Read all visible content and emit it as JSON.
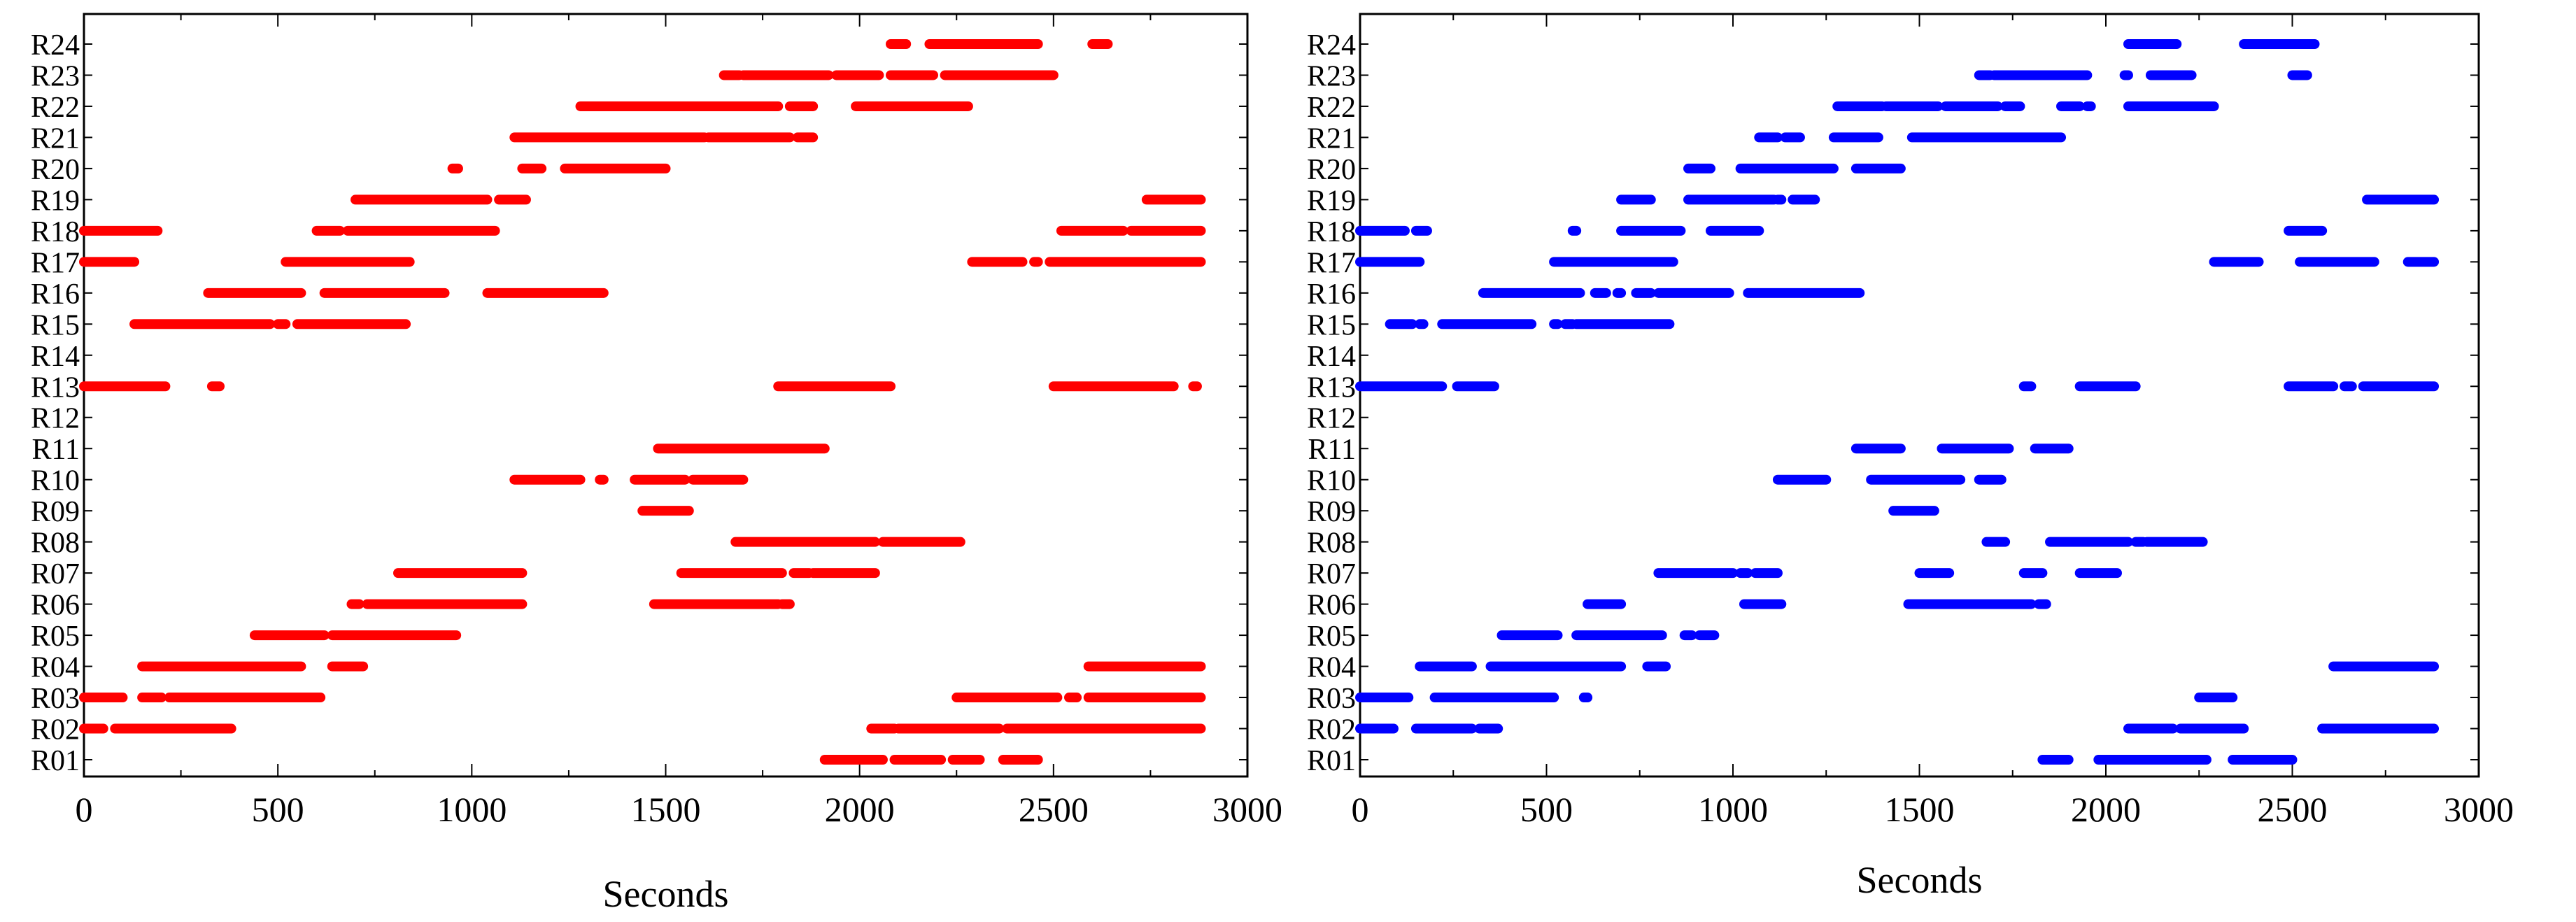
{
  "chart_data": [
    {
      "type": "scatter",
      "xlabel": "Seconds",
      "xlim": [
        0,
        3000
      ],
      "xticks": [
        0,
        500,
        1000,
        1500,
        2000,
        2500,
        3000
      ],
      "xtick_labels": [
        "0",
        "500",
        "1000",
        "1500",
        "2000",
        "2500",
        "3000"
      ],
      "categories": [
        "R01",
        "R02",
        "R03",
        "R04",
        "R05",
        "R06",
        "R07",
        "R08",
        "R09",
        "R10",
        "R11",
        "R12",
        "R13",
        "R14",
        "R15",
        "R16",
        "R17",
        "R18",
        "R19",
        "R20",
        "R21",
        "R22",
        "R23",
        "R24"
      ],
      "color": "#ff0000",
      "grid": false,
      "rows": {
        "R24": [
          [
            2080,
            2120
          ],
          [
            2180,
            2460
          ],
          [
            2600,
            2640
          ]
        ],
        "R23": [
          [
            1650,
            1690
          ],
          [
            1700,
            1920
          ],
          [
            1940,
            2050
          ],
          [
            2080,
            2190
          ],
          [
            2220,
            2500
          ]
        ],
        "R22": [
          [
            1280,
            1790
          ],
          [
            1820,
            1880
          ],
          [
            1990,
            2280
          ]
        ],
        "R21": [
          [
            1110,
            1600
          ],
          [
            1610,
            1820
          ],
          [
            1840,
            1880
          ]
        ],
        "R20": [
          [
            950,
            965
          ],
          [
            1130,
            1180
          ],
          [
            1240,
            1500
          ]
        ],
        "R19": [
          [
            700,
            1040
          ],
          [
            1070,
            1140
          ],
          [
            2740,
            2880
          ]
        ],
        "R18": [
          [
            0,
            190
          ],
          [
            600,
            660
          ],
          [
            680,
            1060
          ],
          [
            2520,
            2680
          ],
          [
            2700,
            2880
          ]
        ],
        "R17": [
          [
            0,
            130
          ],
          [
            520,
            840
          ],
          [
            2290,
            2420
          ],
          [
            2450,
            2460
          ],
          [
            2490,
            2880
          ]
        ],
        "R16": [
          [
            320,
            560
          ],
          [
            620,
            930
          ],
          [
            1040,
            1340
          ]
        ],
        "R15": [
          [
            130,
            480
          ],
          [
            500,
            520
          ],
          [
            550,
            830
          ]
        ],
        "R14": [],
        "R13": [
          [
            0,
            210
          ],
          [
            330,
            350
          ],
          [
            1790,
            2080
          ],
          [
            2500,
            2810
          ],
          [
            2860,
            2870
          ]
        ],
        "R12": [],
        "R11": [
          [
            1480,
            1910
          ]
        ],
        "R10": [
          [
            1110,
            1280
          ],
          [
            1330,
            1340
          ],
          [
            1420,
            1550
          ],
          [
            1570,
            1700
          ]
        ],
        "R09": [
          [
            1440,
            1560
          ]
        ],
        "R08": [
          [
            1680,
            2040
          ],
          [
            2060,
            2260
          ]
        ],
        "R07": [
          [
            810,
            1130
          ],
          [
            1540,
            1800
          ],
          [
            1830,
            1870
          ],
          [
            1880,
            2040
          ]
        ],
        "R06": [
          [
            690,
            710
          ],
          [
            730,
            1130
          ],
          [
            1470,
            1790
          ],
          [
            1800,
            1820
          ]
        ],
        "R05": [
          [
            440,
            620
          ],
          [
            640,
            960
          ]
        ],
        "R04": [
          [
            150,
            560
          ],
          [
            640,
            720
          ],
          [
            2590,
            2880
          ]
        ],
        "R03": [
          [
            0,
            100
          ],
          [
            150,
            200
          ],
          [
            220,
            610
          ],
          [
            2250,
            2510
          ],
          [
            2540,
            2560
          ],
          [
            2590,
            2880
          ]
        ],
        "R02": [
          [
            0,
            50
          ],
          [
            80,
            380
          ],
          [
            2030,
            2090
          ],
          [
            2100,
            2360
          ],
          [
            2380,
            2880
          ]
        ],
        "R01": [
          [
            1910,
            2060
          ],
          [
            2090,
            2210
          ],
          [
            2240,
            2310
          ],
          [
            2370,
            2460
          ]
        ]
      }
    },
    {
      "type": "scatter",
      "xlabel": "Seconds",
      "xlim": [
        0,
        3000
      ],
      "xticks": [
        0,
        500,
        1000,
        1500,
        2000,
        2500,
        3000
      ],
      "xtick_labels": [
        "0",
        "500",
        "1000",
        "1500",
        "2000",
        "2500",
        "3000"
      ],
      "categories": [
        "R01",
        "R02",
        "R03",
        "R04",
        "R05",
        "R06",
        "R07",
        "R08",
        "R09",
        "R10",
        "R11",
        "R12",
        "R13",
        "R14",
        "R15",
        "R16",
        "R17",
        "R18",
        "R19",
        "R20",
        "R21",
        "R22",
        "R23",
        "R24"
      ],
      "color": "#0000ff",
      "grid": false,
      "rows": {
        "R24": [
          [
            2060,
            2190
          ],
          [
            2370,
            2560
          ]
        ],
        "R23": [
          [
            1660,
            1690
          ],
          [
            1700,
            1950
          ],
          [
            2050,
            2060
          ],
          [
            2120,
            2230
          ],
          [
            2500,
            2540
          ]
        ],
        "R22": [
          [
            1280,
            1400
          ],
          [
            1410,
            1550
          ],
          [
            1570,
            1710
          ],
          [
            1730,
            1770
          ],
          [
            1880,
            1930
          ],
          [
            1950,
            1960
          ],
          [
            2060,
            2290
          ]
        ],
        "R21": [
          [
            1070,
            1120
          ],
          [
            1140,
            1180
          ],
          [
            1270,
            1390
          ],
          [
            1480,
            1880
          ]
        ],
        "R20": [
          [
            880,
            940
          ],
          [
            1020,
            1270
          ],
          [
            1330,
            1450
          ]
        ],
        "R19": [
          [
            700,
            780
          ],
          [
            880,
            1110
          ],
          [
            1120,
            1130
          ],
          [
            1160,
            1220
          ],
          [
            2700,
            2880
          ]
        ],
        "R18": [
          [
            0,
            120
          ],
          [
            150,
            180
          ],
          [
            570,
            580
          ],
          [
            700,
            860
          ],
          [
            940,
            1070
          ],
          [
            2490,
            2580
          ]
        ],
        "R17": [
          [
            0,
            160
          ],
          [
            520,
            840
          ],
          [
            2290,
            2410
          ],
          [
            2520,
            2720
          ],
          [
            2810,
            2880
          ]
        ],
        "R16": [
          [
            330,
            590
          ],
          [
            630,
            660
          ],
          [
            690,
            700
          ],
          [
            740,
            780
          ],
          [
            800,
            990
          ],
          [
            1040,
            1340
          ]
        ],
        "R15": [
          [
            80,
            140
          ],
          [
            160,
            170
          ],
          [
            220,
            460
          ],
          [
            520,
            530
          ],
          [
            550,
            570
          ],
          [
            580,
            830
          ]
        ],
        "R14": [],
        "R13": [
          [
            0,
            220
          ],
          [
            260,
            360
          ],
          [
            1780,
            1800
          ],
          [
            1930,
            2080
          ],
          [
            2490,
            2610
          ],
          [
            2640,
            2660
          ],
          [
            2690,
            2880
          ]
        ],
        "R12": [],
        "R11": [
          [
            1330,
            1450
          ],
          [
            1560,
            1740
          ],
          [
            1810,
            1900
          ]
        ],
        "R10": [
          [
            1120,
            1250
          ],
          [
            1370,
            1610
          ],
          [
            1660,
            1720
          ]
        ],
        "R09": [
          [
            1430,
            1540
          ]
        ],
        "R08": [
          [
            1680,
            1730
          ],
          [
            1850,
            2060
          ],
          [
            2080,
            2100
          ],
          [
            2110,
            2260
          ]
        ],
        "R07": [
          [
            800,
            1000
          ],
          [
            1020,
            1040
          ],
          [
            1060,
            1120
          ],
          [
            1500,
            1580
          ],
          [
            1780,
            1830
          ],
          [
            1930,
            2030
          ]
        ],
        "R06": [
          [
            610,
            700
          ],
          [
            1030,
            1130
          ],
          [
            1470,
            1800
          ],
          [
            1820,
            1840
          ]
        ],
        "R05": [
          [
            380,
            530
          ],
          [
            580,
            810
          ],
          [
            870,
            890
          ],
          [
            910,
            950
          ]
        ],
        "R04": [
          [
            160,
            300
          ],
          [
            350,
            700
          ],
          [
            770,
            820
          ],
          [
            2610,
            2880
          ]
        ],
        "R03": [
          [
            0,
            130
          ],
          [
            200,
            520
          ],
          [
            600,
            610
          ],
          [
            2250,
            2340
          ]
        ],
        "R02": [
          [
            0,
            90
          ],
          [
            150,
            300
          ],
          [
            320,
            370
          ],
          [
            2060,
            2180
          ],
          [
            2200,
            2370
          ],
          [
            2580,
            2880
          ]
        ],
        "R01": [
          [
            1830,
            1900
          ],
          [
            1980,
            2270
          ],
          [
            2340,
            2500
          ]
        ]
      }
    }
  ]
}
